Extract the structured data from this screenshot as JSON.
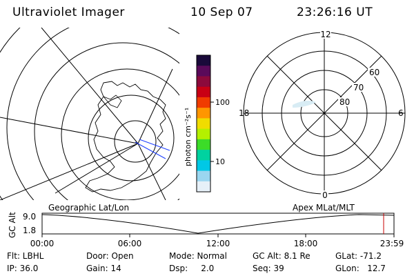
{
  "header": {
    "instrument": "Ultraviolet Imager",
    "date": "10 Sep 07",
    "time": "23:26:16 UT"
  },
  "colorbar": {
    "unit_label": "photon cm⁻²s⁻¹",
    "ticks": [
      "100",
      "10"
    ],
    "colors": [
      "#1a0a3a",
      "#5a0a5a",
      "#8c0a3c",
      "#c80014",
      "#f03c00",
      "#ff9600",
      "#f0dc00",
      "#b4f000",
      "#3cdc28",
      "#00d2a0",
      "#00c8e6",
      "#9ad6f0",
      "#e6f0f8"
    ]
  },
  "geo_panel": {
    "label": "Geographic Lat/Lon"
  },
  "polar_panel": {
    "label": "Apex MLat/MLT",
    "mlt_labels": {
      "top": "12",
      "bottom": "0",
      "left": "18",
      "right": "6"
    },
    "lat_labels": [
      "60",
      "70",
      "80"
    ]
  },
  "altitude_plot": {
    "ylabel": "GC Alt",
    "ytick_top": "9.0",
    "ytick_bottom": "1.8",
    "xticks": [
      "00:00",
      "06:00",
      "12:00",
      "18:00",
      "23:59"
    ],
    "current_time_marker_color": "#c80000"
  },
  "info": {
    "filter": "Flt: LBHL",
    "door": "Door: Open",
    "mode": "Mode: Normal",
    "gc_alt": "GC Alt: 8.1 Re",
    "glat": "GLat:  -71.2",
    "ip": "IP: 36.0",
    "gain": "Gain: 14",
    "dsp": "Dsp:     2.0",
    "seq": "Seq: 39",
    "glon": "GLon:   12.7"
  }
}
